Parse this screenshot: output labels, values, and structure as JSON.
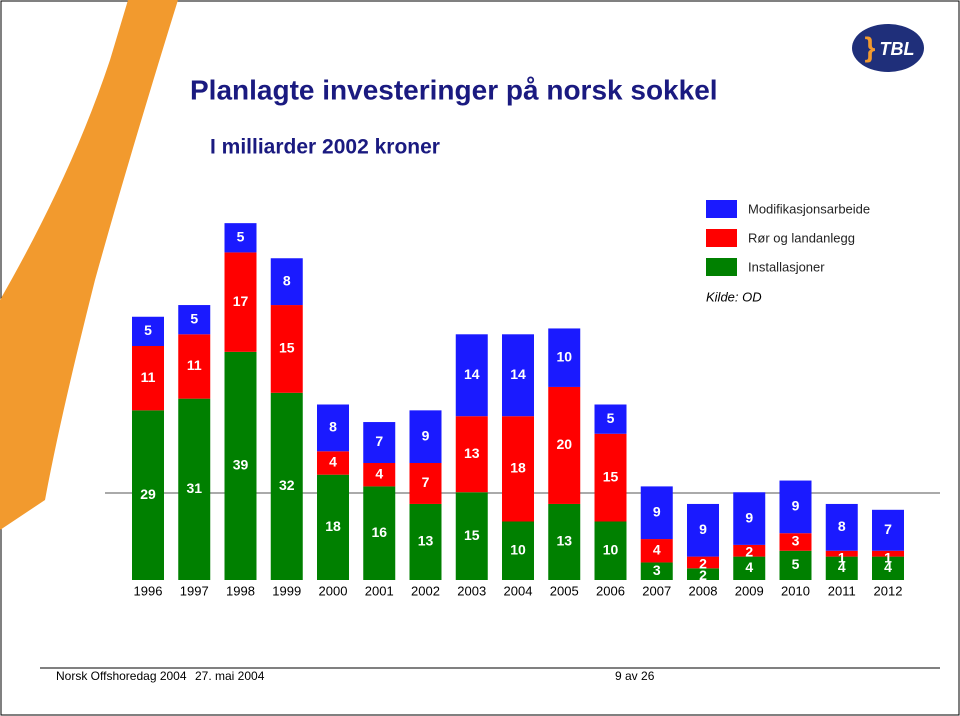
{
  "logo": "TBL",
  "chart_data": {
    "type": "bar",
    "stacked": true,
    "title": "Planlagte investeringer på norsk sokkel",
    "subtitle": "I milliarder 2002 kroner",
    "source": "Kilde: OD",
    "categories": [
      "1996",
      "1997",
      "1998",
      "1999",
      "2000",
      "2001",
      "2002",
      "2003",
      "2004",
      "2005",
      "2006",
      "2007",
      "2008",
      "2009",
      "2010",
      "2011",
      "2012"
    ],
    "series": [
      {
        "name": "Installasjoner",
        "color": "#008000",
        "values": [
          29,
          31,
          39,
          32,
          18,
          16,
          13,
          15,
          10,
          13,
          10,
          3,
          2,
          4,
          5,
          4,
          4
        ]
      },
      {
        "name": "Rør og landanlegg",
        "color": "#ff0000",
        "values": [
          11,
          11,
          17,
          15,
          4,
          4,
          7,
          13,
          18,
          20,
          15,
          4,
          2,
          2,
          3,
          1,
          1
        ]
      },
      {
        "name": "Modifikasjonsarbeide",
        "color": "#1a1aff",
        "values": [
          5,
          5,
          5,
          8,
          8,
          7,
          9,
          14,
          14,
          10,
          5,
          9,
          9,
          9,
          9,
          8,
          7
        ]
      }
    ]
  },
  "footer": {
    "event": "Norsk Offshoredag 2004",
    "date": "27. mai 2004",
    "page": "9 av 26"
  }
}
